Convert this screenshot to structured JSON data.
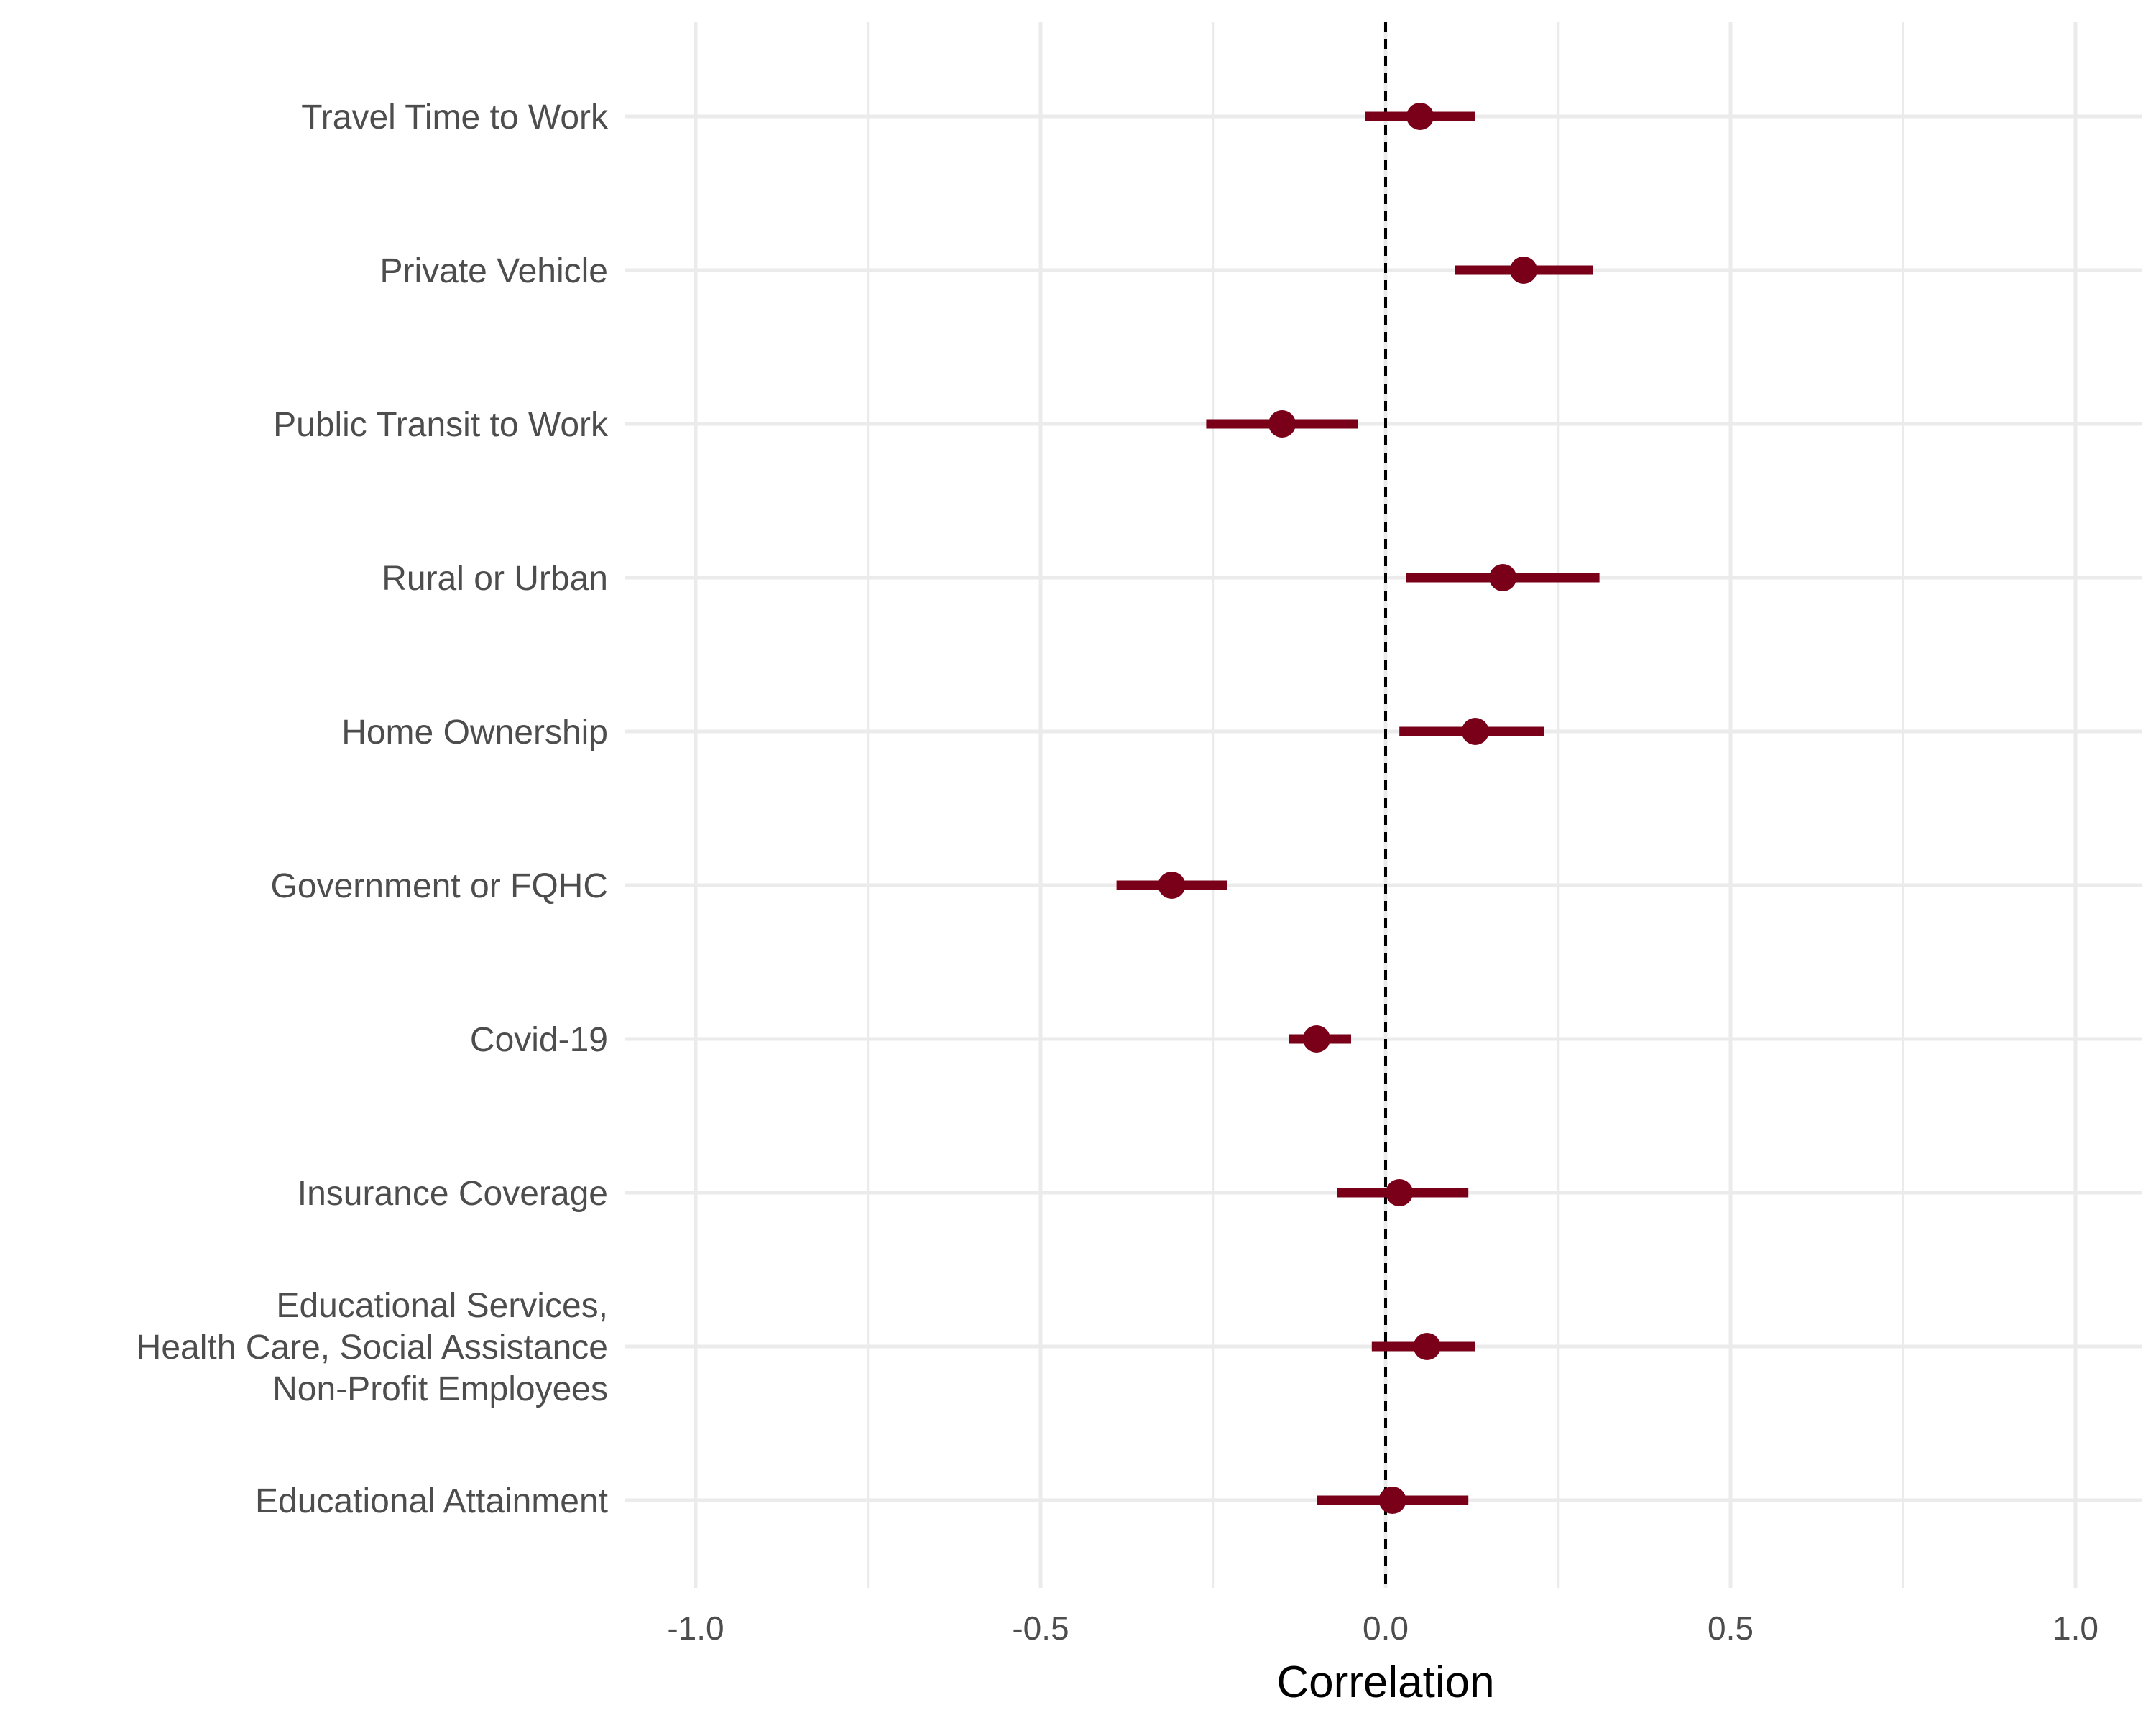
{
  "chart_data": {
    "type": "scatter",
    "subtype": "forest-plot",
    "title": "",
    "xlabel": "Correlation",
    "ylabel": "",
    "xlim": [
      -1.1,
      1.1
    ],
    "xticks": [
      -1.0,
      -0.5,
      0.0,
      0.5,
      1.0
    ],
    "xtick_labels": [
      "-1.0",
      "-0.5",
      "0.0",
      "0.5",
      "1.0"
    ],
    "grid": true,
    "reference_line": {
      "x": 0,
      "style": "dashed"
    },
    "colors": {
      "point": "#7a0019",
      "errorbar": "#7a0019",
      "grid": "#ebebeb",
      "reference": "#000000"
    },
    "categories": [
      {
        "label": [
          "Travel Time to Work"
        ],
        "estimate": 0.05,
        "lower": -0.03,
        "upper": 0.13
      },
      {
        "label": [
          "Private Vehicle"
        ],
        "estimate": 0.2,
        "lower": 0.1,
        "upper": 0.3
      },
      {
        "label": [
          "Public Transit to Work"
        ],
        "estimate": -0.15,
        "lower": -0.26,
        "upper": -0.04
      },
      {
        "label": [
          "Rural or Urban"
        ],
        "estimate": 0.17,
        "lower": 0.03,
        "upper": 0.31
      },
      {
        "label": [
          "Home Ownership"
        ],
        "estimate": 0.13,
        "lower": 0.02,
        "upper": 0.23
      },
      {
        "label": [
          "Government or FQHC"
        ],
        "estimate": -0.31,
        "lower": -0.39,
        "upper": -0.23
      },
      {
        "label": [
          "Covid-19"
        ],
        "estimate": -0.1,
        "lower": -0.14,
        "upper": -0.05
      },
      {
        "label": [
          "Insurance Coverage"
        ],
        "estimate": 0.02,
        "lower": -0.07,
        "upper": 0.12
      },
      {
        "label": [
          "Educational Services,",
          "Health Care, Social Assistance",
          "Non-Profit Employees"
        ],
        "estimate": 0.06,
        "lower": -0.02,
        "upper": 0.13
      },
      {
        "label": [
          "Educational Attainment"
        ],
        "estimate": 0.01,
        "lower": -0.1,
        "upper": 0.12
      }
    ]
  }
}
